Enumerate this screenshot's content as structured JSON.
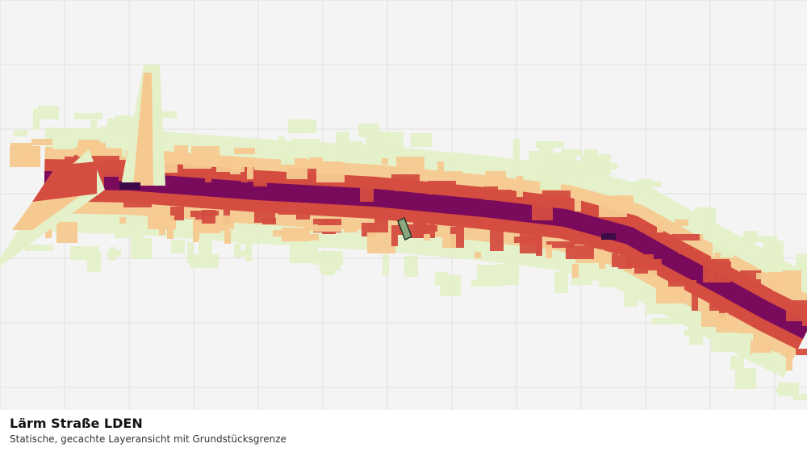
{
  "map": {
    "layer": "Lärm Straße LDEN",
    "colors": {
      "background": "#f4f4f4",
      "grid": "#e0e0e0",
      "class_lowest": "#e4f0c8",
      "class_low": "#f5c990",
      "class_mid": "#d44d40",
      "class_high": "#7a0a5c",
      "class_highest": "#3c0a46",
      "parcel_fill": "#8aa77e",
      "parcel_border": "#1f3a2a"
    }
  },
  "footer": {
    "title": "Lärm Straße LDEN",
    "subtitle": "Statische, gecachte Layeransicht mit Grundstücksgrenze"
  }
}
